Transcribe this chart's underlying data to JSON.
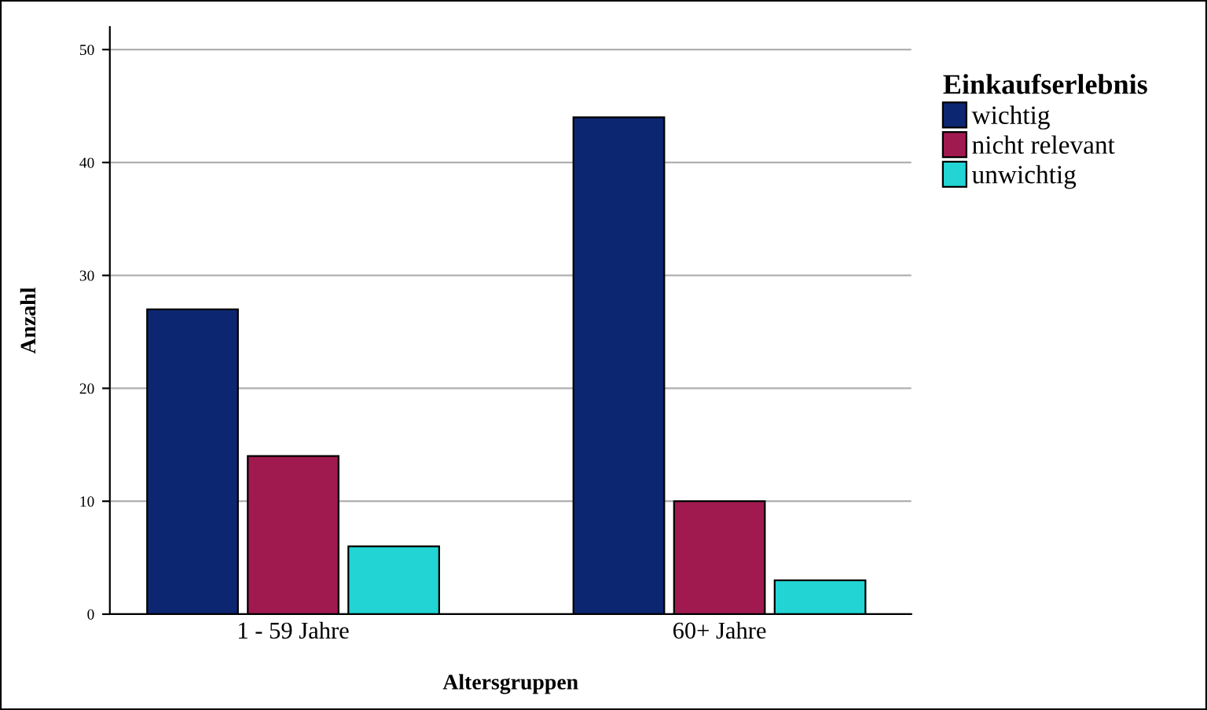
{
  "chart_data": {
    "type": "bar",
    "xlabel": "Altersgruppen",
    "ylabel": "Anzahl",
    "legend_title": "Einkaufserlebnis",
    "categories": [
      "1 - 59 Jahre",
      "60+ Jahre"
    ],
    "series": [
      {
        "name": "wichtig",
        "color": "#0d2671",
        "values": [
          27,
          44
        ]
      },
      {
        "name": "nicht relevant",
        "color": "#a01a4f",
        "values": [
          14,
          10
        ]
      },
      {
        "name": "unwichtig",
        "color": "#22d4d4",
        "values": [
          6,
          3
        ]
      }
    ],
    "ylim": [
      0,
      52
    ],
    "yticks": [
      0,
      10,
      20,
      30,
      40,
      50
    ],
    "grid": "y",
    "legend": "top right"
  }
}
